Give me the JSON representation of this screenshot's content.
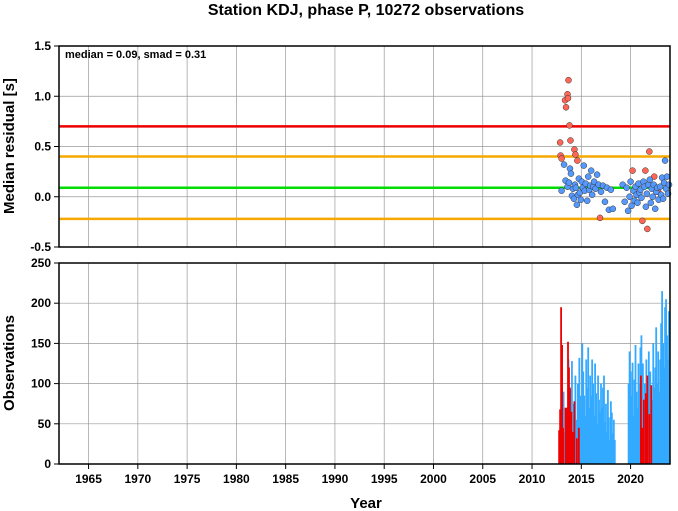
{
  "chart_data": [
    {
      "type": "scatter",
      "title": "Station KDJ, phase P, 10272 observations",
      "annotation": "median = 0.09, smad = 0.31",
      "xlabel": "",
      "ylabel": "Median residual [s]",
      "xlim": [
        1962,
        2024
      ],
      "ylim": [
        -0.5,
        1.5
      ],
      "yticks": [
        "-0.5",
        "0.0",
        "0.5",
        "1.0",
        "1.5"
      ],
      "grid": true,
      "reference_lines": [
        {
          "y": 0.7,
          "color": "#ee0000"
        },
        {
          "y": 0.4,
          "color": "#f5a800"
        },
        {
          "y": 0.09,
          "color": "#00dd00"
        },
        {
          "y": -0.22,
          "color": "#f5a800"
        }
      ],
      "series": [
        {
          "color": "#ff6655",
          "points": [
            [
              2012.85,
              0.54
            ],
            [
              2012.9,
              0.41
            ],
            [
              2013.0,
              0.38
            ],
            [
              2013.35,
              0.96
            ],
            [
              2013.45,
              0.89
            ],
            [
              2013.6,
              1.02
            ],
            [
              2013.7,
              1.16
            ],
            [
              2013.65,
              0.98
            ],
            [
              2013.8,
              0.71
            ],
            [
              2013.9,
              0.56
            ],
            [
              2014.3,
              0.47
            ],
            [
              2014.6,
              0.36
            ],
            [
              2014.4,
              0.42
            ],
            [
              2016.9,
              -0.21
            ],
            [
              2020.2,
              0.26
            ],
            [
              2021.2,
              -0.24
            ],
            [
              2021.5,
              0.26
            ],
            [
              2021.7,
              -0.32
            ],
            [
              2021.9,
              0.45
            ],
            [
              2022.4,
              0.2
            ],
            [
              2022.8,
              0.05
            ]
          ]
        },
        {
          "color": "#5599ff",
          "points": [
            [
              2013.0,
              0.06
            ],
            [
              2013.25,
              0.32
            ],
            [
              2013.4,
              0.16
            ],
            [
              2013.6,
              0.1
            ],
            [
              2013.75,
              0.14
            ],
            [
              2013.85,
              0.28
            ],
            [
              2013.95,
              0.23
            ],
            [
              2014.05,
              0.01
            ],
            [
              2014.15,
              0.08
            ],
            [
              2014.25,
              -0.02
            ],
            [
              2014.35,
              0.12
            ],
            [
              2014.45,
              0.09
            ],
            [
              2014.55,
              -0.08
            ],
            [
              2014.65,
              0.02
            ],
            [
              2014.75,
              0.18
            ],
            [
              2014.85,
              0.04
            ],
            [
              2014.95,
              -0.03
            ],
            [
              2015.05,
              0.15
            ],
            [
              2015.15,
              0.09
            ],
            [
              2015.25,
              0.31
            ],
            [
              2015.35,
              0.06
            ],
            [
              2015.45,
              0.13
            ],
            [
              2015.6,
              -0.04
            ],
            [
              2015.7,
              0.2
            ],
            [
              2015.8,
              0.07
            ],
            [
              2015.9,
              0.11
            ],
            [
              2016.0,
              0.26
            ],
            [
              2016.1,
              0.02
            ],
            [
              2016.2,
              0.1
            ],
            [
              2016.3,
              0.15
            ],
            [
              2016.45,
              0.08
            ],
            [
              2016.6,
              0.22
            ],
            [
              2016.75,
              0.12
            ],
            [
              2017.0,
              0.05
            ],
            [
              2017.2,
              0.11
            ],
            [
              2017.4,
              -0.05
            ],
            [
              2017.6,
              0.09
            ],
            [
              2017.8,
              -0.13
            ],
            [
              2018.0,
              0.07
            ],
            [
              2018.2,
              -0.12
            ],
            [
              2019.2,
              0.12
            ],
            [
              2019.4,
              -0.05
            ],
            [
              2019.6,
              0.09
            ],
            [
              2019.75,
              -0.14
            ],
            [
              2019.9,
              0.0
            ],
            [
              2020.0,
              0.15
            ],
            [
              2020.1,
              -0.09
            ],
            [
              2020.3,
              0.06
            ],
            [
              2020.4,
              -0.04
            ],
            [
              2020.5,
              0.1
            ],
            [
              2020.6,
              0.02
            ],
            [
              2020.7,
              -0.06
            ],
            [
              2020.8,
              0.13
            ],
            [
              2020.9,
              0.04
            ],
            [
              2021.0,
              0.07
            ],
            [
              2021.1,
              -0.01
            ],
            [
              2021.3,
              0.15
            ],
            [
              2021.4,
              0.1
            ],
            [
              2021.55,
              -0.1
            ],
            [
              2021.65,
              0.03
            ],
            [
              2021.8,
              0.12
            ],
            [
              2021.95,
              0.17
            ],
            [
              2022.05,
              -0.06
            ],
            [
              2022.15,
              0.08
            ],
            [
              2022.25,
              0.0
            ],
            [
              2022.35,
              0.12
            ],
            [
              2022.5,
              -0.12
            ],
            [
              2022.6,
              0.05
            ],
            [
              2022.7,
              0.09
            ],
            [
              2022.85,
              -0.03
            ],
            [
              2023.0,
              0.1
            ],
            [
              2023.1,
              0.02
            ],
            [
              2023.2,
              0.19
            ],
            [
              2023.3,
              -0.02
            ],
            [
              2023.4,
              0.14
            ],
            [
              2023.5,
              0.36
            ],
            [
              2023.6,
              0.08
            ],
            [
              2023.7,
              0.2
            ],
            [
              2023.8,
              0.03
            ],
            [
              2023.9,
              0.12
            ]
          ]
        }
      ]
    },
    {
      "type": "bar",
      "xlabel": "Year",
      "ylabel": "Observations",
      "xlim": [
        1962,
        2024
      ],
      "ylim": [
        0,
        250
      ],
      "xticks": [
        "1965",
        "1970",
        "1975",
        "1980",
        "1985",
        "1990",
        "1995",
        "2000",
        "2005",
        "2010",
        "2015",
        "2020"
      ],
      "yticks": [
        "0",
        "50",
        "100",
        "150",
        "200",
        "250"
      ],
      "grid": true,
      "series": [
        {
          "color": "#ee0000",
          "points": [
            [
              2012.75,
              42
            ],
            [
              2012.85,
              68
            ],
            [
              2012.95,
              195
            ],
            [
              2013.05,
              148
            ],
            [
              2013.15,
              45
            ],
            [
              2013.4,
              70
            ],
            [
              2013.55,
              70
            ],
            [
              2013.65,
              152
            ],
            [
              2013.75,
              120
            ],
            [
              2013.85,
              95
            ],
            [
              2014.0,
              65
            ],
            [
              2014.15,
              40
            ],
            [
              2014.3,
              78
            ],
            [
              2014.55,
              32
            ],
            [
              2014.75,
              45
            ],
            [
              2021.05,
              110
            ],
            [
              2021.2,
              45
            ],
            [
              2021.35,
              80
            ],
            [
              2021.55,
              88
            ],
            [
              2021.7,
              110
            ],
            [
              2021.9,
              62
            ],
            [
              2022.1,
              98
            ]
          ]
        },
        {
          "color": "#33aaff",
          "points": [
            [
              2013.2,
              90
            ],
            [
              2013.35,
              40
            ],
            [
              2013.5,
              60
            ],
            [
              2013.7,
              130
            ],
            [
              2013.8,
              70
            ],
            [
              2013.95,
              92
            ],
            [
              2014.05,
              128
            ],
            [
              2014.25,
              75
            ],
            [
              2014.4,
              110
            ],
            [
              2014.5,
              55
            ],
            [
              2014.65,
              100
            ],
            [
              2014.8,
              132
            ],
            [
              2014.9,
              85
            ],
            [
              2015.0,
              68
            ],
            [
              2015.1,
              150
            ],
            [
              2015.2,
              115
            ],
            [
              2015.3,
              85
            ],
            [
              2015.4,
              60
            ],
            [
              2015.5,
              130
            ],
            [
              2015.6,
              95
            ],
            [
              2015.7,
              145
            ],
            [
              2015.8,
              70
            ],
            [
              2015.9,
              110
            ],
            [
              2016.0,
              85
            ],
            [
              2016.1,
              130
            ],
            [
              2016.2,
              100
            ],
            [
              2016.3,
              60
            ],
            [
              2016.4,
              125
            ],
            [
              2016.5,
              88
            ],
            [
              2016.6,
              50
            ],
            [
              2016.7,
              110
            ],
            [
              2016.8,
              80
            ],
            [
              2016.9,
              65
            ],
            [
              2017.0,
              100
            ],
            [
              2017.1,
              70
            ],
            [
              2017.2,
              95
            ],
            [
              2017.3,
              110
            ],
            [
              2017.4,
              52
            ],
            [
              2017.5,
              75
            ],
            [
              2017.6,
              40
            ],
            [
              2017.7,
              92
            ],
            [
              2017.8,
              58
            ],
            [
              2017.9,
              30
            ],
            [
              2018.0,
              78
            ],
            [
              2018.1,
              64
            ],
            [
              2018.2,
              38
            ],
            [
              2018.3,
              55
            ],
            [
              2018.4,
              30
            ],
            [
              2019.8,
              100
            ],
            [
              2019.9,
              140
            ],
            [
              2020.0,
              115
            ],
            [
              2020.1,
              85
            ],
            [
              2020.2,
              126
            ],
            [
              2020.3,
              60
            ],
            [
              2020.4,
              105
            ],
            [
              2020.5,
              148
            ],
            [
              2020.6,
              90
            ],
            [
              2020.7,
              70
            ],
            [
              2020.8,
              125
            ],
            [
              2020.9,
              100
            ],
            [
              2021.0,
              145
            ],
            [
              2021.1,
              160
            ],
            [
              2021.25,
              125
            ],
            [
              2021.45,
              100
            ],
            [
              2021.6,
              130
            ],
            [
              2021.75,
              90
            ],
            [
              2021.85,
              140
            ],
            [
              2022.0,
              115
            ],
            [
              2022.2,
              80
            ],
            [
              2022.3,
              150
            ],
            [
              2022.4,
              95
            ],
            [
              2022.5,
              120
            ],
            [
              2022.6,
              170
            ],
            [
              2022.7,
              100
            ],
            [
              2022.8,
              140
            ],
            [
              2022.9,
              90
            ],
            [
              2023.0,
              130
            ],
            [
              2023.1,
              175
            ],
            [
              2023.2,
              215
            ],
            [
              2023.3,
              150
            ],
            [
              2023.4,
              120
            ],
            [
              2023.5,
              195
            ],
            [
              2023.6,
              205
            ],
            [
              2023.7,
              160
            ],
            [
              2023.8,
              130
            ],
            [
              2023.9,
              190
            ]
          ]
        }
      ]
    }
  ]
}
